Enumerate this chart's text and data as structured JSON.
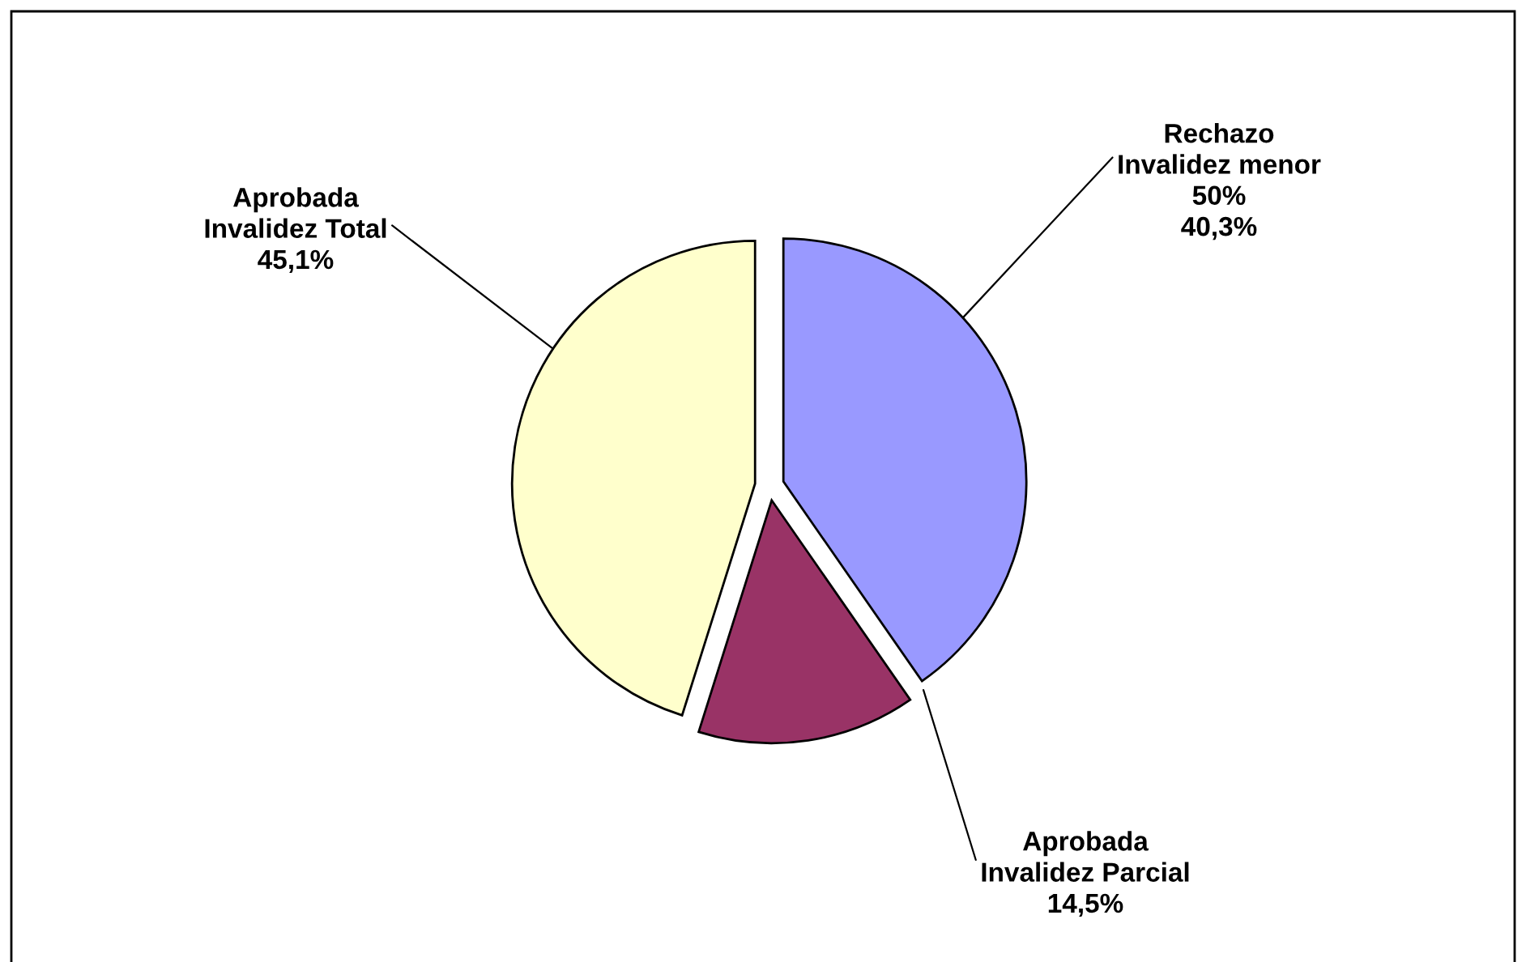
{
  "chart_data": {
    "type": "pie",
    "categories": [
      "Rechazo\nInvalidez menor\n50%",
      "Aprobada\nInvalidez Parcial",
      "Aprobada\nInvalidez Total"
    ],
    "values": [
      40.3,
      14.5,
      45.1
    ],
    "colors": [
      "#9999ff",
      "#993366",
      "#ffffcc"
    ],
    "value_labels": [
      "40,3%",
      "14,5%",
      "45,1%"
    ]
  }
}
